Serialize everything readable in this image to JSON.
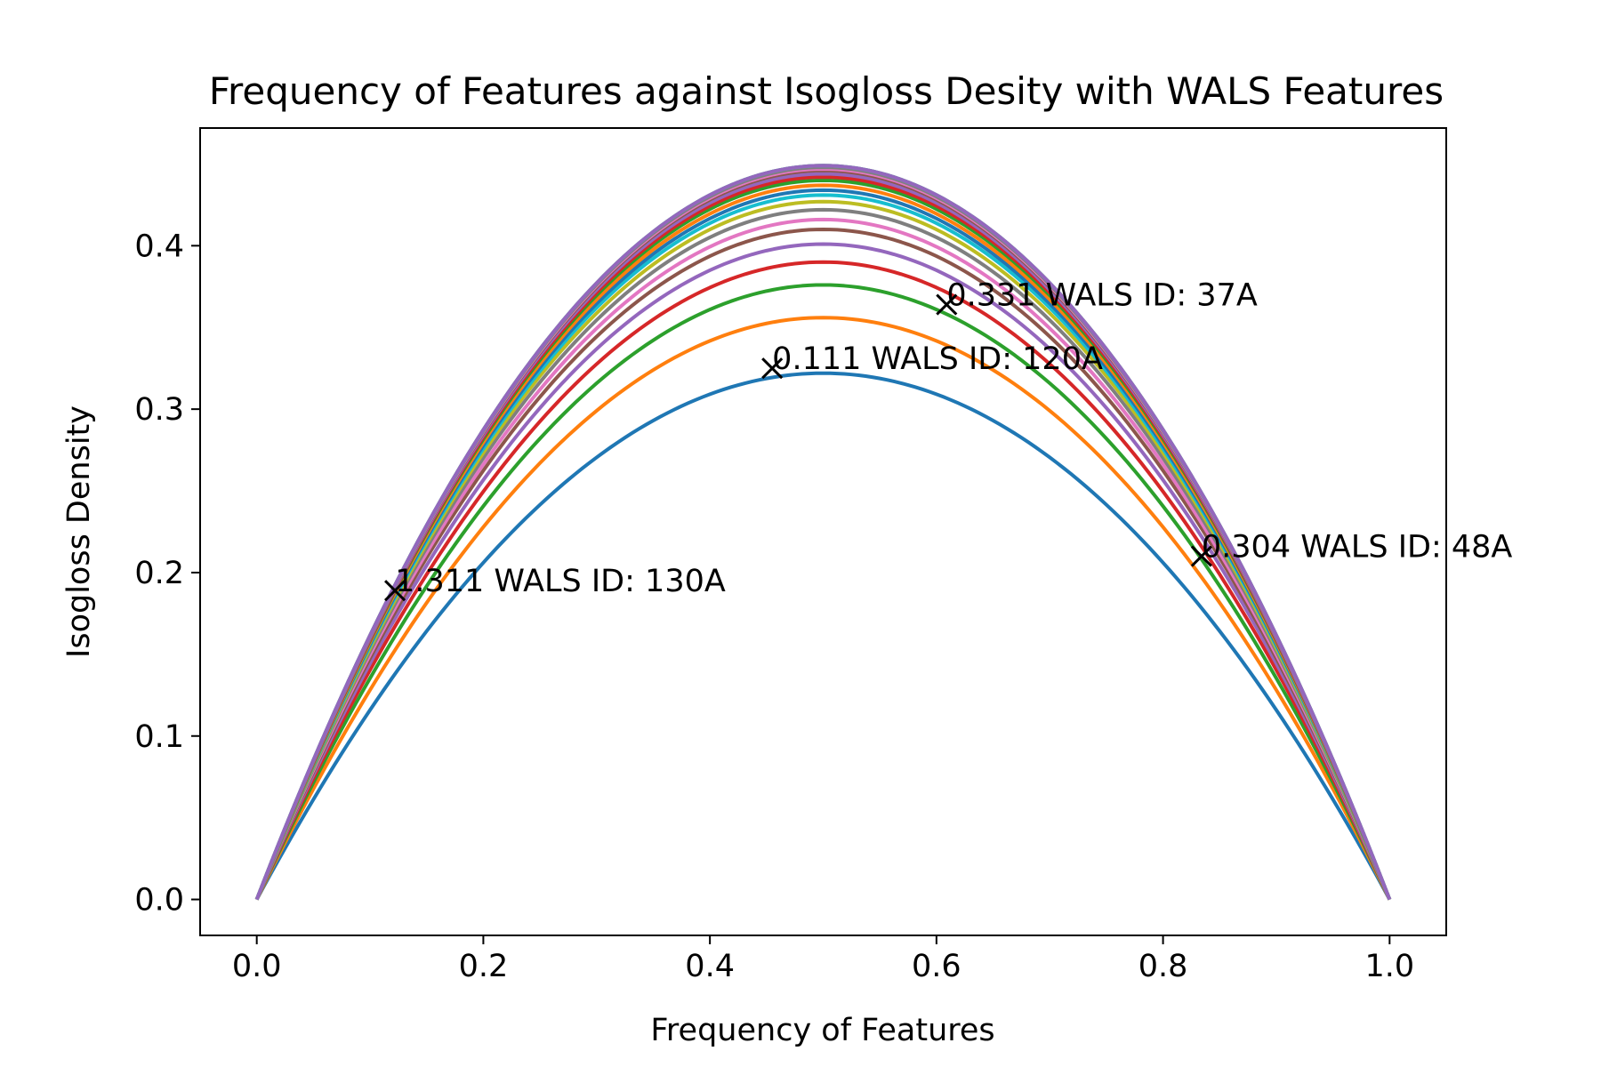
{
  "chart_data": {
    "type": "line",
    "title": "Frequency of Features against Isogloss Desity with WALS Features",
    "xlabel": "Frequency of Features",
    "ylabel": "Isogloss Density",
    "xlim": [
      -0.05,
      1.05
    ],
    "ylim": [
      -0.022,
      0.472
    ],
    "xticks": [
      "0.0",
      "0.2",
      "0.4",
      "0.6",
      "0.8",
      "1.0"
    ],
    "xtick_values": [
      0.0,
      0.2,
      0.4,
      0.6,
      0.8,
      1.0
    ],
    "yticks": [
      "0.0",
      "0.1",
      "0.2",
      "0.3",
      "0.4"
    ],
    "ytick_values": [
      0.0,
      0.1,
      0.2,
      0.3,
      0.4
    ],
    "grid": false,
    "legend": "none",
    "curve_form": "peak * 4 * x * (1 - x)",
    "x_range": [
      0.0,
      1.0
    ],
    "series": [
      {
        "peak": 0.322,
        "color": "#1f77b4"
      },
      {
        "peak": 0.356,
        "color": "#ff7f0e"
      },
      {
        "peak": 0.376,
        "color": "#2ca02c"
      },
      {
        "peak": 0.39,
        "color": "#d62728"
      },
      {
        "peak": 0.401,
        "color": "#9467bd"
      },
      {
        "peak": 0.41,
        "color": "#8c564b"
      },
      {
        "peak": 0.416,
        "color": "#e377c2"
      },
      {
        "peak": 0.422,
        "color": "#7f7f7f"
      },
      {
        "peak": 0.427,
        "color": "#bcbd22"
      },
      {
        "peak": 0.431,
        "color": "#17becf"
      },
      {
        "peak": 0.434,
        "color": "#1f77b4"
      },
      {
        "peak": 0.437,
        "color": "#ff7f0e"
      },
      {
        "peak": 0.44,
        "color": "#2ca02c"
      },
      {
        "peak": 0.442,
        "color": "#d62728"
      },
      {
        "peak": 0.444,
        "color": "#9467bd"
      },
      {
        "peak": 0.446,
        "color": "#8c564b"
      },
      {
        "peak": 0.447,
        "color": "#e377c2"
      },
      {
        "peak": 0.448,
        "color": "#7f7f7f"
      },
      {
        "peak": 0.449,
        "color": "#bcbd22"
      },
      {
        "peak": 0.449,
        "color": "#17becf"
      },
      {
        "peak": 0.449,
        "color": "#9467bd"
      }
    ],
    "markers": [
      {
        "x": 0.122,
        "y": 0.189,
        "label": "1.311 WALS ID: 130A"
      },
      {
        "x": 0.455,
        "y": 0.325,
        "label": "0.111 WALS ID: 120A"
      },
      {
        "x": 0.609,
        "y": 0.364,
        "label": "0.331 WALS ID: 37A"
      },
      {
        "x": 0.834,
        "y": 0.21,
        "label": "0.304 WALS ID: 48A"
      }
    ],
    "marker_symbol": "x",
    "marker_color": "#000000"
  }
}
